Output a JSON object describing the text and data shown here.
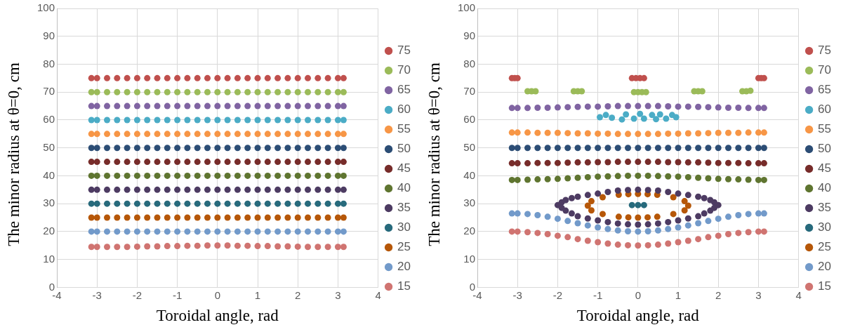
{
  "chart_data": [
    {
      "type": "scatter",
      "xlabel": "Toroidal angle, rad",
      "ylabel": "The minor radius at θ=0, cm",
      "xlim": [
        -4,
        4
      ],
      "xticks": [
        -4,
        -3,
        -2,
        -1,
        0,
        1,
        2,
        3,
        4
      ],
      "ylim": [
        0,
        100
      ],
      "yticks": [
        0,
        10,
        20,
        30,
        40,
        50,
        60,
        70,
        80,
        90,
        100
      ],
      "grid": true,
      "legend": "right",
      "marker": "circle",
      "x": [
        -3.14,
        -3,
        -2.75,
        -2.5,
        -2.25,
        -2,
        -1.75,
        -1.5,
        -1.25,
        -1,
        -0.75,
        -0.5,
        -0.25,
        0,
        0.25,
        0.5,
        0.75,
        1,
        1.25,
        1.5,
        1.75,
        2,
        2.25,
        2.5,
        2.75,
        3,
        3.14
      ],
      "series": [
        {
          "name": "75",
          "color": "#c0504d",
          "values": [
            75,
            75,
            75,
            75,
            75,
            75,
            75,
            75,
            75,
            75,
            75,
            75,
            75,
            75,
            75,
            75,
            75,
            75,
            75,
            75,
            75,
            75,
            75,
            75,
            75,
            75,
            75
          ]
        },
        {
          "name": "70",
          "color": "#9bbb59",
          "values": [
            70,
            70,
            70,
            70,
            70,
            70,
            70,
            70,
            70,
            70,
            70,
            70,
            70,
            70,
            70,
            70,
            70,
            70,
            70,
            70,
            70,
            70,
            70,
            70,
            70,
            70,
            70
          ]
        },
        {
          "name": "65",
          "color": "#8064a2",
          "values": [
            65,
            65,
            65,
            65,
            65,
            65,
            65,
            65,
            65,
            65,
            65,
            65,
            65,
            65,
            65,
            65,
            65,
            65,
            65,
            65,
            65,
            65,
            65,
            65,
            65,
            65,
            65
          ]
        },
        {
          "name": "60",
          "color": "#4bacc6",
          "values": [
            60,
            60,
            60,
            60,
            60,
            60,
            60,
            60,
            60,
            60,
            60,
            60,
            60,
            60,
            60,
            60,
            60,
            60,
            60,
            60,
            60,
            60,
            60,
            60,
            60,
            60,
            60
          ]
        },
        {
          "name": "55",
          "color": "#f79646",
          "values": [
            55,
            55,
            55,
            55,
            55,
            55,
            55,
            55,
            55,
            55,
            55,
            55,
            55,
            55,
            55,
            55,
            55,
            55,
            55,
            55,
            55,
            55,
            55,
            55,
            55,
            55,
            55
          ]
        },
        {
          "name": "50",
          "color": "#2c4d75",
          "values": [
            50,
            50,
            50,
            50,
            50,
            50,
            50,
            50,
            50,
            50,
            50,
            50,
            50,
            50,
            50,
            50,
            50,
            50,
            50,
            50,
            50,
            50,
            50,
            50,
            50,
            50,
            50
          ]
        },
        {
          "name": "45",
          "color": "#772c2a",
          "values": [
            45,
            45,
            45,
            45,
            45,
            45,
            45,
            45,
            45,
            45,
            45,
            45,
            45,
            45,
            45,
            45,
            45,
            45,
            45,
            45,
            45,
            45,
            45,
            45,
            45,
            45,
            45
          ]
        },
        {
          "name": "40",
          "color": "#5f7530",
          "values": [
            40,
            40,
            40,
            40,
            40,
            40,
            40,
            40,
            40,
            40,
            40,
            40,
            40,
            40,
            40,
            40,
            40,
            40,
            40,
            40,
            40,
            40,
            40,
            40,
            40,
            40,
            40
          ]
        },
        {
          "name": "35",
          "color": "#4d3b62",
          "values": [
            35,
            35,
            35,
            35,
            35,
            35,
            35,
            35,
            35,
            35,
            35,
            35,
            35,
            35,
            35,
            35,
            35,
            35,
            35,
            35,
            35,
            35,
            35,
            35,
            35,
            35,
            35
          ]
        },
        {
          "name": "30",
          "color": "#276a7c",
          "values": [
            30,
            30,
            30,
            30,
            30,
            30,
            30,
            30,
            30,
            30,
            30,
            30,
            30,
            30,
            30,
            30,
            30,
            30,
            30,
            30,
            30,
            30,
            30,
            30,
            30,
            30,
            30
          ]
        },
        {
          "name": "25",
          "color": "#b65708",
          "values": [
            25,
            25,
            25,
            25,
            25,
            25,
            25,
            25,
            25,
            25,
            25,
            25,
            25,
            25,
            25,
            25,
            25,
            25,
            25,
            25,
            25,
            25,
            25,
            25,
            25,
            25,
            25
          ]
        },
        {
          "name": "20",
          "color": "#729aca",
          "values": [
            20,
            20,
            20,
            20,
            20,
            20,
            20,
            20,
            20,
            20,
            20,
            20,
            20,
            20,
            20,
            20,
            20,
            20,
            20,
            20,
            20,
            20,
            20,
            20,
            20,
            20,
            20
          ]
        },
        {
          "name": "15",
          "color": "#d07471",
          "values": [
            14.5,
            14.5,
            14.5,
            14.5,
            14.5,
            14.6,
            14.7,
            14.7,
            14.8,
            14.8,
            14.9,
            14.9,
            15,
            15,
            15,
            14.9,
            14.9,
            14.8,
            14.8,
            14.7,
            14.7,
            14.6,
            14.5,
            14.5,
            14.5,
            14.5,
            14.5
          ]
        }
      ]
    },
    {
      "type": "scatter",
      "xlabel": "Toroidal angle, rad",
      "ylabel": "The minor radius at θ=0, cm",
      "xlim": [
        -4,
        4
      ],
      "xticks": [
        -4,
        -3,
        -2,
        -1,
        0,
        1,
        2,
        3,
        4
      ],
      "ylim": [
        0,
        100
      ],
      "yticks": [
        0,
        10,
        20,
        30,
        40,
        50,
        60,
        70,
        80,
        90,
        100
      ],
      "grid": true,
      "legend": "right",
      "marker": "circle",
      "x": [
        -3.14,
        -3,
        -2.75,
        -2.5,
        -2.25,
        -2,
        -1.75,
        -1.5,
        -1.25,
        -1,
        -0.75,
        -0.5,
        -0.25,
        0,
        0.25,
        0.5,
        0.75,
        1,
        1.25,
        1.5,
        1.75,
        2,
        2.25,
        2.5,
        2.75,
        3,
        3.14
      ],
      "series": [
        {
          "name": "75",
          "color": "#c0504d",
          "x": [
            -3.14,
            -3.07,
            -3,
            -0.15,
            -0.05,
            0.05,
            0.15,
            3,
            3.07,
            3.14
          ],
          "values": [
            75,
            75,
            75,
            75,
            75,
            75,
            75,
            75,
            75,
            75
          ]
        },
        {
          "name": "70",
          "color": "#9bbb59",
          "x": [
            -2.75,
            -2.65,
            -2.55,
            -1.6,
            -1.5,
            -1.4,
            -0.1,
            0,
            0.1,
            0.2,
            1.4,
            1.5,
            1.6,
            2.6,
            2.7,
            2.8
          ],
          "values": [
            70.3,
            70.3,
            70.3,
            70.3,
            70.3,
            70.3,
            70,
            70,
            70,
            70,
            70.3,
            70.3,
            70.3,
            70.3,
            70.3,
            70.5
          ]
        },
        {
          "name": "65",
          "color": "#8064a2",
          "values": [
            64.3,
            64.3,
            64.3,
            64.4,
            64.4,
            64.5,
            64.6,
            64.7,
            64.8,
            64.8,
            64.9,
            65,
            65,
            65,
            65,
            65,
            64.9,
            64.8,
            64.8,
            64.7,
            64.6,
            64.5,
            64.4,
            64.4,
            64.3,
            64.3,
            64.3
          ]
        },
        {
          "name": "60",
          "color": "#4bacc6",
          "x": [
            -0.95,
            -0.8,
            -0.65,
            -0.4,
            -0.3,
            -0.1,
            0.05,
            0.15,
            0.35,
            0.45,
            0.55,
            0.7,
            0.85,
            0.95
          ],
          "values": [
            61,
            61.8,
            60.8,
            60.2,
            62,
            60.5,
            62.2,
            60.5,
            61.8,
            60.3,
            62,
            60.5,
            61.8,
            61
          ]
        },
        {
          "name": "55",
          "color": "#f79646",
          "values": [
            55.5,
            55.5,
            55.5,
            55.4,
            55.4,
            55.4,
            55.3,
            55.2,
            55.2,
            55.1,
            55.1,
            55,
            55,
            55,
            55,
            55,
            55.1,
            55.1,
            55.2,
            55.2,
            55.3,
            55.4,
            55.4,
            55.4,
            55.5,
            55.5,
            55.5
          ]
        },
        {
          "name": "50",
          "color": "#2c4d75",
          "values": [
            50,
            50,
            50,
            50,
            50,
            50,
            50,
            50,
            50,
            50,
            50,
            50,
            50,
            50,
            50,
            50,
            50,
            50,
            50,
            50,
            50,
            50,
            50,
            50,
            50,
            50,
            50
          ]
        },
        {
          "name": "45",
          "color": "#772c2a",
          "values": [
            44.5,
            44.5,
            44.5,
            44.6,
            44.6,
            44.6,
            44.7,
            44.8,
            44.8,
            44.9,
            44.9,
            45,
            45,
            45,
            45,
            45,
            44.9,
            44.9,
            44.8,
            44.8,
            44.7,
            44.6,
            44.6,
            44.6,
            44.5,
            44.5,
            44.5
          ]
        },
        {
          "name": "40",
          "color": "#5f7530",
          "values": [
            38.5,
            38.5,
            38.6,
            38.7,
            38.8,
            38.9,
            39.1,
            39.3,
            39.5,
            39.7,
            39.8,
            39.9,
            40,
            40,
            40,
            39.9,
            39.8,
            39.7,
            39.5,
            39.3,
            39.1,
            38.9,
            38.8,
            38.7,
            38.6,
            38.5,
            38.5
          ]
        },
        {
          "name": "35",
          "color": "#4d3b62",
          "x": [
            2,
            1.9,
            1.8,
            1.65,
            1.5,
            1.25,
            1,
            0.75,
            0.5,
            0.25,
            0,
            -0.25,
            -0.5,
            -0.75,
            -1,
            -1.25,
            -1.5,
            -1.65,
            -1.8,
            -1.9,
            -2,
            -1.9,
            -1.8,
            -1.65,
            -1.5,
            -1.25,
            -1,
            -0.75,
            -0.5,
            -0.25,
            0,
            0.25,
            0.5,
            0.75,
            1,
            1.25,
            1.5,
            1.65,
            1.8,
            1.9
          ],
          "values": [
            29.5,
            30.5,
            31.3,
            32,
            32.5,
            33.1,
            33.6,
            34.2,
            34.7,
            34.9,
            35,
            34.9,
            34.7,
            34.2,
            33.6,
            33.1,
            32.5,
            32,
            31.3,
            30.5,
            29.5,
            28.5,
            27.5,
            26.5,
            25.5,
            24.7,
            24,
            23.4,
            22.9,
            22.6,
            22.5,
            22.6,
            22.9,
            23.4,
            24,
            24.7,
            25.5,
            26.5,
            27.5,
            28.5
          ]
        },
        {
          "name": "30",
          "color": "#276a7c",
          "x": [
            -0.15,
            0,
            0.15
          ],
          "values": [
            29.5,
            29.5,
            29.5
          ]
        },
        {
          "name": "25",
          "color": "#b65708",
          "x": [
            1.25,
            1.16,
            0.88,
            0.48,
            0.24,
            0,
            -0.24,
            -0.48,
            -0.88,
            -1.16,
            -1.25,
            -1.16,
            -0.88,
            -0.48,
            -0.24,
            0,
            0.24,
            0.48,
            0.88,
            1.16
          ],
          "values": [
            29.3,
            30.9,
            32.3,
            33.2,
            33.4,
            33.5,
            33.4,
            33.2,
            32.3,
            30.9,
            29.3,
            27.6,
            26.3,
            25.3,
            25.1,
            25,
            25.1,
            25.3,
            26.3,
            27.6
          ]
        },
        {
          "name": "20",
          "color": "#729aca",
          "values": [
            26.5,
            26.5,
            26.3,
            25.9,
            25.3,
            24.6,
            23.8,
            23,
            22.2,
            21.5,
            20.9,
            20.4,
            20.1,
            20,
            20.1,
            20.4,
            20.9,
            21.5,
            22.2,
            23,
            23.8,
            24.6,
            25.3,
            25.9,
            26.3,
            26.5,
            26.5
          ]
        },
        {
          "name": "15",
          "color": "#d07471",
          "values": [
            20,
            20,
            19.8,
            19.5,
            19.1,
            18.5,
            18,
            17.3,
            16.7,
            16.2,
            15.7,
            15.3,
            15.1,
            15,
            15.1,
            15.3,
            15.7,
            16.2,
            16.7,
            17.3,
            18,
            18.5,
            19.1,
            19.5,
            19.8,
            20,
            20
          ]
        }
      ]
    }
  ]
}
